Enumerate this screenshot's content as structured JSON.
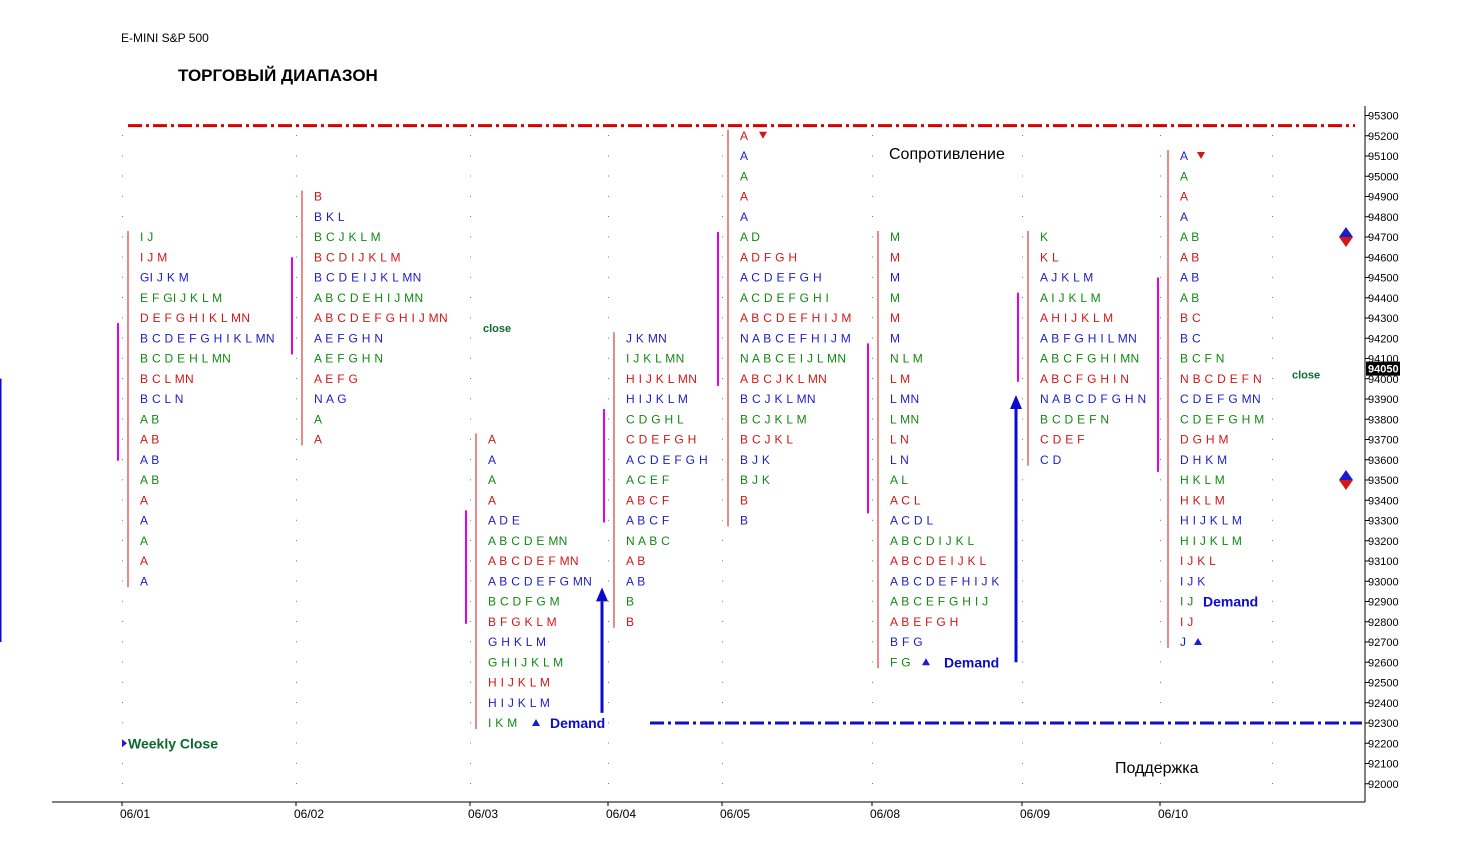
{
  "header": {
    "instrument": "E-MINI S&P 500",
    "title": "ТОРГОВЫЙ ДИАПАЗОН"
  },
  "colors": {
    "blue": "#1c1ccc",
    "red": "#d31616",
    "green": "#108a10",
    "magenta": "#e300e3",
    "resistance_line": "#d90000",
    "support_line": "#1010c8",
    "arrow": "#0a0ad0",
    "dark_green_text": "#0a6a2e",
    "price_box_bg": "#000000"
  },
  "chart_data": {
    "type": "market_profile",
    "price_axis": {
      "min": 92000,
      "max": 95300,
      "step": 100,
      "tick_labels": [
        "95300",
        "95200",
        "95100",
        "95000",
        "94900",
        "94800",
        "94700",
        "94600",
        "94500",
        "94400",
        "94300",
        "94200",
        "94100",
        "94000",
        "93900",
        "93800",
        "93700",
        "93600",
        "93500",
        "93400",
        "93300",
        "93200",
        "93100",
        "93000",
        "92900",
        "92800",
        "92700",
        "92600",
        "92500",
        "92400",
        "92300",
        "92200",
        "92100",
        "92000"
      ],
      "current_price": "94050"
    },
    "dates": [
      "06/01",
      "06/02",
      "06/03",
      "06/04",
      "06/05",
      "06/08",
      "06/09",
      "06/10"
    ],
    "days": [
      {
        "rows": [
          [
            94700,
            "I J"
          ],
          [
            94600,
            "I J M"
          ],
          [
            94500,
            "GI J K M"
          ],
          [
            94400,
            "E F GI J K L M"
          ],
          [
            94300,
            "D E F G H I K L MN"
          ],
          [
            94200,
            "B C D E F G H I K L MN"
          ],
          [
            94100,
            "B C D E H L MN"
          ],
          [
            94000,
            "B C L MN"
          ],
          [
            93900,
            "B C L N"
          ],
          [
            93800,
            "A B"
          ],
          [
            93700,
            "A B"
          ],
          [
            93600,
            "A B"
          ],
          [
            93500,
            "A B"
          ],
          [
            93400,
            "A"
          ],
          [
            93300,
            "A"
          ],
          [
            93200,
            "A"
          ],
          [
            93100,
            "A"
          ],
          [
            93000,
            "A"
          ]
        ]
      },
      {
        "rows": [
          [
            94900,
            "B"
          ],
          [
            94800,
            "B K L"
          ],
          [
            94700,
            "B C J K L M"
          ],
          [
            94600,
            "B C D I J K L M"
          ],
          [
            94500,
            "B C D E I J K L MN"
          ],
          [
            94400,
            "A B C D E H I J MN"
          ],
          [
            94300,
            "A B C D E F G H I J MN"
          ],
          [
            94200,
            "A E F G H N"
          ],
          [
            94100,
            "A E F G H N"
          ],
          [
            94000,
            "A E F G"
          ],
          [
            93900,
            "N A G"
          ],
          [
            93800,
            "A"
          ],
          [
            93700,
            "A"
          ]
        ]
      },
      {
        "rows": [
          [
            93700,
            "A"
          ],
          [
            93600,
            "A"
          ],
          [
            93500,
            "A"
          ],
          [
            93400,
            "A"
          ],
          [
            93300,
            "A D E"
          ],
          [
            93200,
            "A B C D E MN"
          ],
          [
            93100,
            "A B C D E F MN"
          ],
          [
            93000,
            "A B C D E F G MN"
          ],
          [
            92900,
            "B C D F G M"
          ],
          [
            92800,
            "B F G K L M"
          ],
          [
            92700,
            "G H K L M"
          ],
          [
            92600,
            "G H I J K L M"
          ],
          [
            92500,
            "H I J K L M"
          ],
          [
            92400,
            "H I J K L M"
          ],
          [
            92300,
            "I K M"
          ]
        ]
      },
      {
        "rows": [
          [
            94200,
            "J K MN"
          ],
          [
            94100,
            "I J K L MN"
          ],
          [
            94000,
            "H I J K L MN"
          ],
          [
            93900,
            "H I J K L M"
          ],
          [
            93800,
            "C D G H L"
          ],
          [
            93700,
            "C D E F G H"
          ],
          [
            93600,
            "A C D E F G H"
          ],
          [
            93500,
            "A C E F"
          ],
          [
            93400,
            "A B C F"
          ],
          [
            93300,
            "A B C F"
          ],
          [
            93200,
            "N A B C"
          ],
          [
            93100,
            "A B"
          ],
          [
            93000,
            "A B"
          ],
          [
            92900,
            "B"
          ],
          [
            92800,
            "B"
          ]
        ]
      },
      {
        "rows": [
          [
            95200,
            "A"
          ],
          [
            95100,
            "A"
          ],
          [
            95000,
            "A"
          ],
          [
            94900,
            "A"
          ],
          [
            94800,
            "A"
          ],
          [
            94700,
            "A D"
          ],
          [
            94600,
            "A D F G H"
          ],
          [
            94500,
            "A C D E F G H"
          ],
          [
            94400,
            "A C D E F G H I"
          ],
          [
            94300,
            "A B C D E F H I J M"
          ],
          [
            94200,
            "N A B C E F H I J M"
          ],
          [
            94100,
            "N A B C E I J L MN"
          ],
          [
            94000,
            "A B C J K L MN"
          ],
          [
            93900,
            "B C J K L MN"
          ],
          [
            93800,
            "B C J K L M"
          ],
          [
            93700,
            "B C J K L"
          ],
          [
            93600,
            "B J K"
          ],
          [
            93500,
            "B J K"
          ],
          [
            93400,
            "B"
          ],
          [
            93300,
            "B"
          ]
        ]
      },
      {
        "rows": [
          [
            94700,
            "M"
          ],
          [
            94600,
            "M"
          ],
          [
            94500,
            "M"
          ],
          [
            94400,
            "M"
          ],
          [
            94300,
            "M"
          ],
          [
            94200,
            "M"
          ],
          [
            94100,
            "N L M"
          ],
          [
            94000,
            "L M"
          ],
          [
            93900,
            "L MN"
          ],
          [
            93800,
            "L MN"
          ],
          [
            93700,
            "L N"
          ],
          [
            93600,
            "L N"
          ],
          [
            93500,
            "A L"
          ],
          [
            93400,
            "A C L"
          ],
          [
            93300,
            "A C D L"
          ],
          [
            93200,
            "A B C D I J K L"
          ],
          [
            93100,
            "A B C D E I J K L"
          ],
          [
            93000,
            "A B C D E F H I J K"
          ],
          [
            92900,
            "A B C E F G H I J"
          ],
          [
            92800,
            "A B E F G H"
          ],
          [
            92700,
            "B F G"
          ],
          [
            92600,
            "F G"
          ]
        ]
      },
      {
        "rows": [
          [
            94700,
            "K"
          ],
          [
            94600,
            "K L"
          ],
          [
            94500,
            "A J K L M"
          ],
          [
            94400,
            "A I J K L M"
          ],
          [
            94300,
            "A H I J K L M"
          ],
          [
            94200,
            "A B F G H I L MN"
          ],
          [
            94100,
            "A B C F G H I MN"
          ],
          [
            94000,
            "A B C F G H I N"
          ],
          [
            93900,
            "N A B C D F G H N"
          ],
          [
            93800,
            "B C D E F N"
          ],
          [
            93700,
            "C D E F"
          ],
          [
            93600,
            "C D"
          ]
        ]
      },
      {
        "rows": [
          [
            95100,
            "A"
          ],
          [
            95000,
            "A"
          ],
          [
            94900,
            "A"
          ],
          [
            94800,
            "A"
          ],
          [
            94700,
            "A B"
          ],
          [
            94600,
            "A B"
          ],
          [
            94500,
            "A B"
          ],
          [
            94400,
            "A B"
          ],
          [
            94300,
            "B C"
          ],
          [
            94200,
            "B C"
          ],
          [
            94100,
            "B C F N"
          ],
          [
            94000,
            "N B C D E F N"
          ],
          [
            93900,
            "C D E F G MN"
          ],
          [
            93800,
            "C D E F G H M"
          ],
          [
            93700,
            "D G H M"
          ],
          [
            93600,
            "D H K M"
          ],
          [
            93500,
            "H K L M"
          ],
          [
            93400,
            "H K L M"
          ],
          [
            93300,
            "H I J K L M"
          ],
          [
            93200,
            "H I J K L M"
          ],
          [
            93100,
            "I J K L"
          ],
          [
            93000,
            "I J K"
          ],
          [
            92900,
            "I J"
          ],
          [
            92800,
            "I J"
          ],
          [
            92700,
            "J"
          ]
        ]
      }
    ],
    "resistance_level": 95250,
    "support_level": 92300,
    "annotations": {
      "resistance": "Сопротивление",
      "support": "Поддержка",
      "demand": "Demand",
      "close": "close",
      "weekly_close": "Weekly Close"
    },
    "demand_arrows": [
      {
        "day": 2,
        "from": 92350,
        "to": 92950
      },
      {
        "day": 5,
        "from": 92600,
        "to": 93900
      },
      {
        "day": 7,
        "from": 92700,
        "to": 94050
      }
    ]
  }
}
